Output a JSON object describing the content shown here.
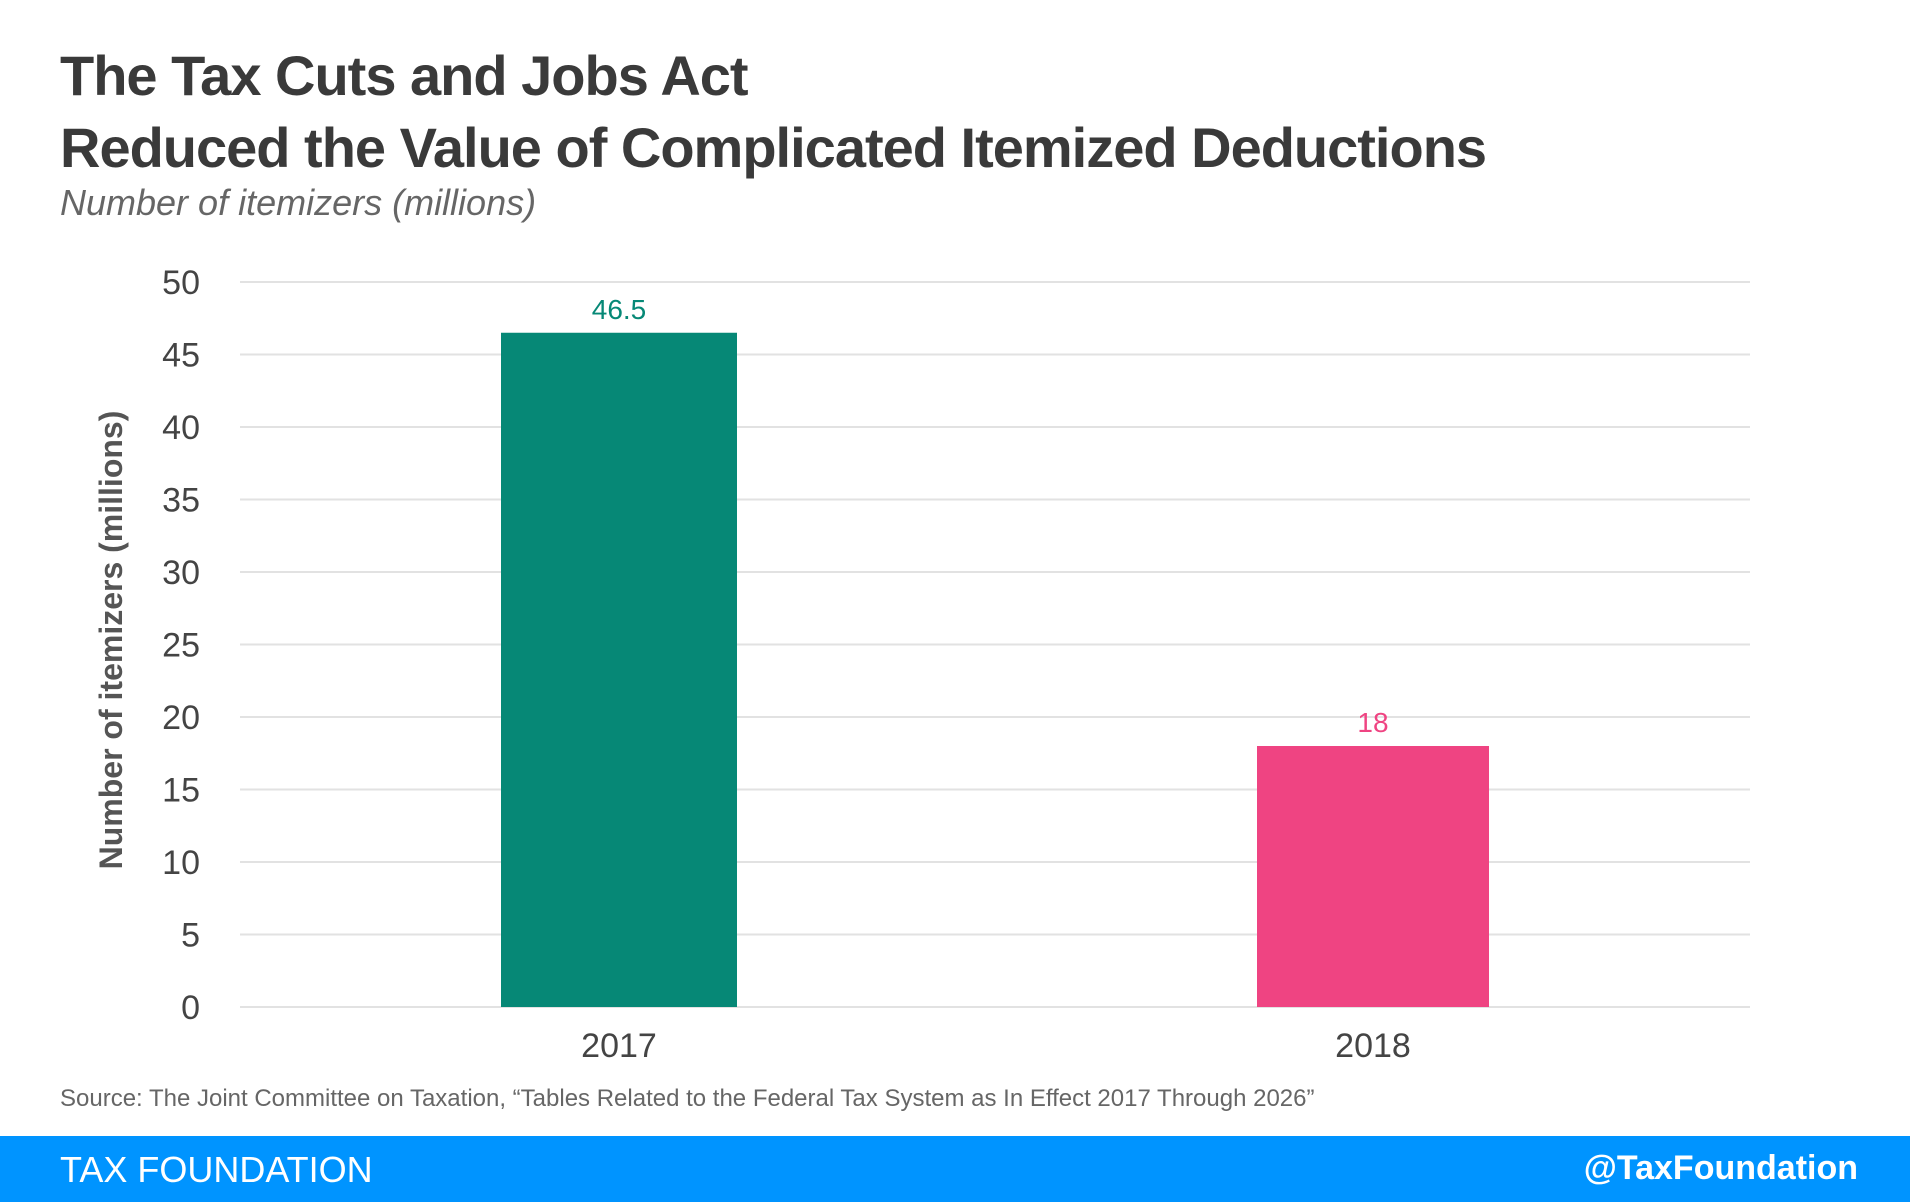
{
  "header": {
    "title_line1": "The Tax Cuts and Jobs Act",
    "title_line2": "Reduced the Value of Complicated Itemized Deductions",
    "subtitle": "Number of itemizers (millions)"
  },
  "chart_data": {
    "type": "bar",
    "title": "The Tax Cuts and Jobs Act Reduced the Value of Complicated Itemized Deductions",
    "subtitle": "Number of itemizers (millions)",
    "categories": [
      "2017",
      "2018"
    ],
    "values": [
      46.5,
      18
    ],
    "data_labels": [
      "46.5",
      "18"
    ],
    "colors": [
      "#068876",
      "#ef4482"
    ],
    "xlabel": "",
    "ylabel": "Number of itemizers (millions)",
    "ylim": [
      0,
      50
    ],
    "yticks": [
      0,
      5,
      10,
      15,
      20,
      25,
      30,
      35,
      40,
      45,
      50
    ],
    "grid": true,
    "legend": "none"
  },
  "source": "Source: The Joint Committee on Taxation, “Tables Related to the Federal Tax System as In Effect 2017 Through 2026”",
  "footer": {
    "brand": "TAX FOUNDATION",
    "handle": "@TaxFoundation",
    "color": "#0094ff"
  }
}
